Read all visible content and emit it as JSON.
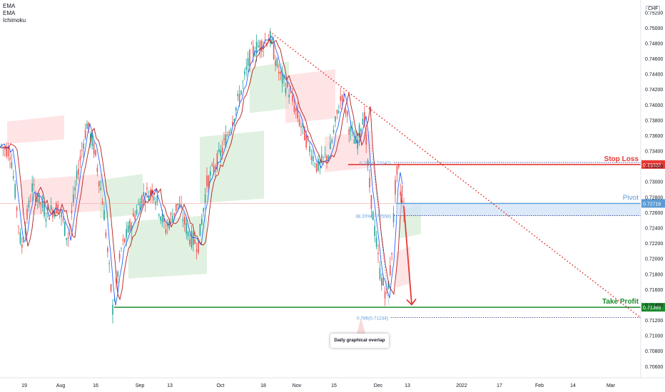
{
  "legend": [
    "EMA",
    "EMA",
    "Ichimoku"
  ],
  "currency_unit": "CHF",
  "callout_label": "Daily graphical overlap",
  "colors": {
    "stop_loss": "#e53935",
    "pivot": "#5b9bd5",
    "take_profit": "#1b8a2c",
    "trendline": "#e53935",
    "candle_up": "#26a69a",
    "candle_down": "#ef5350",
    "ema_fast": "#2962ff",
    "ema_slow": "#b71c1c"
  },
  "chart_data": {
    "type": "candlestick",
    "y_axis_ticks": [
      0.752,
      0.75,
      0.748,
      0.746,
      0.744,
      0.742,
      0.74,
      0.738,
      0.736,
      0.734,
      0.732,
      0.73,
      0.728,
      0.726,
      0.724,
      0.722,
      0.72,
      0.718,
      0.716,
      0.714,
      0.712,
      0.71,
      0.708,
      0.706
    ],
    "y_axis_labels": [
      "0.75200",
      "0.75000",
      "0.74800",
      "0.74600",
      "0.74400",
      "0.74200",
      "0.74000",
      "0.73800",
      "0.73600",
      "0.73400",
      "0.73200",
      "0.73000",
      "0.72800",
      "0.72600",
      "0.72400",
      "0.72200",
      "0.72000",
      "0.71800",
      "0.71600",
      "0.71400",
      "0.71200",
      "0.71000",
      "0.70800",
      "0.70600"
    ],
    "y_range": [
      0.7045,
      0.7536
    ],
    "x_axis_labels": [
      "19",
      "Aug",
      "16",
      "Sep",
      "13",
      "Oct",
      "18",
      "Nov",
      "15",
      "Dec",
      "13",
      "2022",
      "17",
      "Feb",
      "14",
      "Mar"
    ],
    "levels": [
      {
        "name": "Stop Loss",
        "value": 0.73222,
        "label": "0.73222"
      },
      {
        "name": "Pivot",
        "value": 0.72716,
        "label": "0.72716"
      },
      {
        "name": "Take Profit",
        "value": 0.71366,
        "label": "0.71366"
      }
    ],
    "fib_annotations": [
      {
        "text": "0.786(0.73247)",
        "value": 0.73247
      },
      {
        "text": "38.20%(0.72558)",
        "value": 0.72558
      },
      {
        "text": "0.786(0.71234)",
        "value": 0.71234
      }
    ],
    "price_path": [
      [
        0,
        0.7348
      ],
      [
        15,
        0.7338
      ],
      [
        30,
        0.7212
      ],
      [
        45,
        0.7292
      ],
      [
        65,
        0.7258
      ],
      [
        82,
        0.7268
      ],
      [
        95,
        0.7225
      ],
      [
        110,
        0.7318
      ],
      [
        122,
        0.7375
      ],
      [
        133,
        0.7338
      ],
      [
        145,
        0.7268
      ],
      [
        158,
        0.7135
      ],
      [
        170,
        0.7212
      ],
      [
        185,
        0.7248
      ],
      [
        200,
        0.7282
      ],
      [
        215,
        0.7288
      ],
      [
        232,
        0.7238
      ],
      [
        250,
        0.7272
      ],
      [
        265,
        0.7228
      ],
      [
        278,
        0.7218
      ],
      [
        290,
        0.7298
      ],
      [
        310,
        0.7338
      ],
      [
        325,
        0.7378
      ],
      [
        340,
        0.7425
      ],
      [
        352,
        0.7468
      ],
      [
        365,
        0.7478
      ],
      [
        378,
        0.7488
      ],
      [
        392,
        0.7438
      ],
      [
        405,
        0.7418
      ],
      [
        418,
        0.7382
      ],
      [
        432,
        0.7348
      ],
      [
        445,
        0.7318
      ],
      [
        462,
        0.7338
      ],
      [
        475,
        0.7398
      ],
      [
        480,
        0.7415
      ],
      [
        490,
        0.7368
      ],
      [
        500,
        0.7348
      ],
      [
        510,
        0.7392
      ],
      [
        517,
        0.7302
      ],
      [
        525,
        0.7238
      ],
      [
        533,
        0.7178
      ],
      [
        542,
        0.7152
      ],
      [
        548,
        0.7192
      ],
      [
        554,
        0.7292
      ],
      [
        558,
        0.7322
      ],
      [
        562,
        0.7278
      ],
      [
        568,
        0.7258
      ]
    ],
    "forecast": {
      "from": 0.7268,
      "to": 0.714
    }
  }
}
